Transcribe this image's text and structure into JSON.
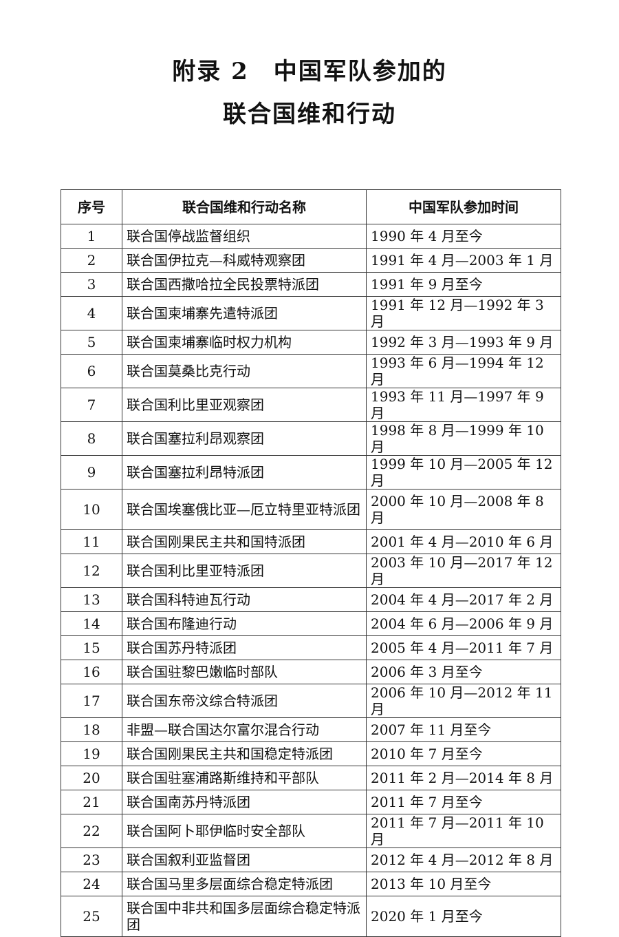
{
  "title_line1": "附录 2　中国军队参加的",
  "title_line2": "联合国维和行动",
  "table": {
    "headers": [
      "序号",
      "联合国维和行动名称",
      "中国军队参加时间"
    ],
    "rows": [
      [
        "1",
        "联合国停战监督组织",
        "1990 年 4 月至今"
      ],
      [
        "2",
        "联合国伊拉克—科威特观察团",
        "1991 年 4 月—2003 年 1 月"
      ],
      [
        "3",
        "联合国西撒哈拉全民投票特派团",
        "1991 年 9 月至今"
      ],
      [
        "4",
        "联合国柬埔寨先遣特派团",
        "1991 年 12 月—1992 年 3 月"
      ],
      [
        "5",
        "联合国柬埔寨临时权力机构",
        "1992 年 3 月—1993 年 9 月"
      ],
      [
        "6",
        "联合国莫桑比克行动",
        "1993 年 6 月—1994 年 12 月"
      ],
      [
        "7",
        "联合国利比里亚观察团",
        "1993 年 11 月—1997 年 9 月"
      ],
      [
        "8",
        "联合国塞拉利昂观察团",
        "1998 年 8 月—1999 年 10 月"
      ],
      [
        "9",
        "联合国塞拉利昂特派团",
        "1999 年 10 月—2005 年 12 月"
      ],
      [
        "10",
        "联合国埃塞俄比亚—厄立特里亚特派团",
        "2000 年 10 月—2008 年 8 月"
      ],
      [
        "11",
        "联合国刚果民主共和国特派团",
        "2001 年 4 月—2010 年 6 月"
      ],
      [
        "12",
        "联合国利比里亚特派团",
        "2003 年 10 月—2017 年 12 月"
      ],
      [
        "13",
        "联合国科特迪瓦行动",
        "2004 年 4 月—2017 年 2 月"
      ],
      [
        "14",
        "联合国布隆迪行动",
        "2004 年 6 月—2006 年 9 月"
      ],
      [
        "15",
        "联合国苏丹特派团",
        "2005 年 4 月—2011 年 7 月"
      ],
      [
        "16",
        "联合国驻黎巴嫩临时部队",
        "2006 年 3 月至今"
      ],
      [
        "17",
        "联合国东帝汶综合特派团",
        "2006 年 10 月—2012 年 11 月"
      ],
      [
        "18",
        "非盟—联合国达尔富尔混合行动",
        "2007 年 11 月至今"
      ],
      [
        "19",
        "联合国刚果民主共和国稳定特派团",
        "2010 年 7 月至今"
      ],
      [
        "20",
        "联合国驻塞浦路斯维持和平部队",
        "2011 年 2 月—2014 年 8 月"
      ],
      [
        "21",
        "联合国南苏丹特派团",
        "2011 年 7 月至今"
      ],
      [
        "22",
        "联合国阿卜耶伊临时安全部队",
        "2011 年 7 月—2011 年 10 月"
      ],
      [
        "23",
        "联合国叙利亚监督团",
        "2012 年 4 月—2012 年 8 月"
      ],
      [
        "24",
        "联合国马里多层面综合稳定特派团",
        "2013 年 10 月至今"
      ],
      [
        "25",
        "联合国中非共和国多层面综合稳定特派团",
        "2020 年 1 月至今"
      ]
    ]
  }
}
